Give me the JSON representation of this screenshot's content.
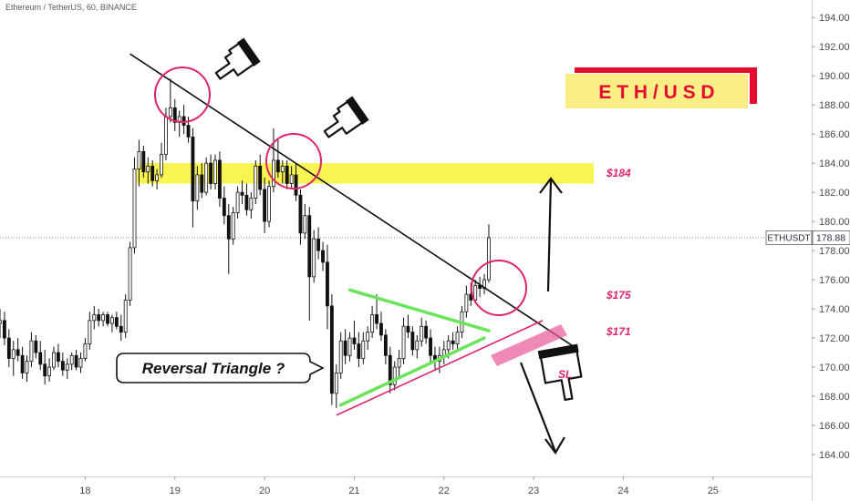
{
  "header": {
    "symbol": "Ethereum / TetherUS, 60, BINANCE"
  },
  "banner": {
    "text": "E T H / U S D"
  },
  "labels": {
    "zone_184": "$184",
    "level_175": "$175",
    "level_171": "$171",
    "callout": "Reversal Triangle ?",
    "stop_loss": "SL"
  },
  "price_tag": {
    "symbol": "ETHUSDT",
    "value": "178.88"
  },
  "chart_data": {
    "type": "candlestick",
    "y_axis": {
      "ticks": [
        "194.00",
        "192.00",
        "190.00",
        "188.00",
        "186.00",
        "184.00",
        "182.00",
        "180.00",
        "178.00",
        "176.00",
        "174.00",
        "172.00",
        "170.00",
        "168.00",
        "166.00",
        "164.00"
      ],
      "range": [
        162.5,
        195.2
      ]
    },
    "x_axis": {
      "ticks": [
        "18",
        "19",
        "20",
        "21",
        "22",
        "23",
        "24",
        "25"
      ],
      "range": [
        17.05,
        26.1
      ]
    },
    "last_price": 178.88,
    "resistance_zone": [
      182.6,
      184.0
    ],
    "levels": [
      175,
      171
    ],
    "trendline_down": [
      [
        18.5,
        191.5
      ],
      [
        23.45,
        171.4
      ]
    ],
    "triangle_upper": [
      [
        20.95,
        175.3
      ],
      [
        22.5,
        172.5
      ]
    ],
    "triangle_lower": [
      [
        20.85,
        167.4
      ],
      [
        22.45,
        172.0
      ]
    ],
    "support_line": [
      [
        20.8,
        166.7
      ],
      [
        23.1,
        173.2
      ]
    ],
    "candles": [
      [
        17.05,
        173.0,
        174.0,
        172.0,
        173.2
      ],
      [
        17.1,
        173.2,
        173.8,
        171.5,
        172.0
      ],
      [
        17.15,
        172.0,
        172.6,
        170.0,
        170.6
      ],
      [
        17.2,
        170.6,
        171.8,
        169.4,
        171.2
      ],
      [
        17.25,
        171.2,
        172.0,
        170.4,
        170.8
      ],
      [
        17.3,
        170.8,
        171.4,
        169.2,
        169.6
      ],
      [
        17.35,
        169.6,
        170.8,
        169.0,
        170.4
      ],
      [
        17.4,
        170.4,
        172.4,
        170.0,
        171.8
      ],
      [
        17.45,
        171.8,
        172.2,
        170.6,
        171.0
      ],
      [
        17.5,
        171.0,
        171.8,
        169.8,
        170.2
      ],
      [
        17.55,
        170.2,
        171.2,
        168.8,
        169.4
      ],
      [
        17.6,
        169.4,
        170.6,
        169.0,
        170.0
      ],
      [
        17.65,
        170.0,
        171.4,
        169.8,
        171.0
      ],
      [
        17.7,
        171.0,
        171.6,
        170.0,
        170.4
      ],
      [
        17.75,
        170.4,
        171.0,
        169.4,
        169.8
      ],
      [
        17.8,
        169.8,
        170.6,
        169.2,
        170.2
      ],
      [
        17.85,
        170.2,
        171.0,
        169.8,
        170.8
      ],
      [
        17.9,
        170.8,
        171.2,
        169.8,
        170.0
      ],
      [
        17.95,
        170.0,
        171.0,
        169.6,
        170.6
      ],
      [
        18.0,
        170.6,
        172.0,
        170.4,
        171.6
      ],
      [
        18.05,
        171.6,
        173.8,
        171.2,
        173.2
      ],
      [
        18.1,
        173.2,
        174.2,
        172.6,
        173.6
      ],
      [
        18.15,
        173.6,
        174.0,
        172.8,
        173.2
      ],
      [
        18.2,
        173.2,
        173.8,
        172.8,
        173.6
      ],
      [
        18.25,
        173.6,
        173.8,
        172.8,
        173.0
      ],
      [
        18.3,
        173.0,
        173.6,
        172.4,
        173.4
      ],
      [
        18.35,
        173.4,
        173.8,
        172.6,
        172.8
      ],
      [
        18.4,
        172.8,
        173.6,
        171.8,
        172.4
      ],
      [
        18.45,
        172.4,
        175.0,
        172.0,
        174.6
      ],
      [
        18.5,
        174.6,
        178.6,
        174.2,
        178.2
      ],
      [
        18.55,
        178.2,
        184.4,
        177.8,
        183.6
      ],
      [
        18.6,
        183.6,
        185.6,
        182.4,
        184.8
      ],
      [
        18.65,
        184.8,
        185.2,
        183.0,
        183.4
      ],
      [
        18.7,
        183.4,
        184.4,
        182.6,
        183.8
      ],
      [
        18.75,
        183.8,
        184.2,
        182.4,
        182.8
      ],
      [
        18.8,
        182.8,
        183.6,
        182.2,
        183.2
      ],
      [
        18.85,
        183.2,
        185.4,
        183.0,
        184.6
      ],
      [
        18.9,
        184.6,
        187.8,
        184.2,
        187.2
      ],
      [
        18.95,
        187.2,
        189.8,
        186.8,
        187.8
      ],
      [
        19.0,
        187.8,
        188.4,
        186.2,
        186.8
      ],
      [
        19.05,
        186.8,
        187.6,
        185.8,
        187.2
      ],
      [
        19.1,
        187.2,
        188.0,
        186.0,
        186.6
      ],
      [
        19.15,
        186.6,
        187.2,
        185.4,
        185.8
      ],
      [
        19.2,
        185.8,
        186.4,
        179.6,
        181.4
      ],
      [
        19.25,
        181.4,
        183.8,
        180.8,
        183.2
      ],
      [
        19.3,
        183.2,
        184.0,
        181.6,
        182.0
      ],
      [
        19.35,
        182.0,
        184.4,
        181.8,
        184.0
      ],
      [
        19.4,
        184.0,
        184.6,
        182.2,
        182.6
      ],
      [
        19.45,
        182.6,
        184.6,
        182.2,
        184.2
      ],
      [
        19.5,
        184.2,
        184.8,
        181.0,
        181.6
      ],
      [
        19.55,
        181.6,
        182.4,
        179.8,
        180.4
      ],
      [
        19.6,
        180.4,
        181.2,
        176.4,
        178.8
      ],
      [
        19.65,
        178.8,
        181.0,
        178.4,
        180.6
      ],
      [
        19.7,
        180.6,
        182.4,
        180.2,
        182.0
      ],
      [
        19.75,
        182.0,
        182.8,
        181.2,
        181.8
      ],
      [
        19.8,
        181.8,
        182.6,
        180.4,
        180.8
      ],
      [
        19.85,
        180.8,
        182.0,
        180.2,
        181.6
      ],
      [
        19.9,
        181.6,
        184.2,
        181.2,
        183.8
      ],
      [
        19.95,
        183.8,
        184.6,
        181.8,
        182.2
      ],
      [
        20.0,
        182.2,
        183.0,
        179.2,
        180.0
      ],
      [
        20.05,
        180.0,
        182.8,
        179.6,
        182.4
      ],
      [
        20.1,
        182.4,
        186.4,
        182.0,
        184.2
      ],
      [
        20.15,
        184.2,
        185.6,
        183.0,
        183.4
      ],
      [
        20.2,
        183.4,
        184.2,
        182.6,
        183.8
      ],
      [
        20.25,
        183.8,
        184.2,
        182.2,
        182.6
      ],
      [
        20.3,
        182.6,
        183.8,
        182.2,
        183.2
      ],
      [
        20.35,
        183.2,
        184.0,
        181.4,
        181.8
      ],
      [
        20.4,
        181.8,
        182.2,
        178.4,
        179.2
      ],
      [
        20.45,
        179.2,
        181.2,
        178.8,
        180.4
      ],
      [
        20.5,
        180.4,
        181.0,
        173.2,
        176.2
      ],
      [
        20.55,
        176.2,
        179.4,
        175.8,
        178.8
      ],
      [
        20.6,
        178.8,
        179.6,
        177.4,
        178.0
      ],
      [
        20.65,
        178.0,
        178.6,
        176.6,
        177.2
      ],
      [
        20.7,
        177.2,
        178.4,
        172.6,
        174.2
      ],
      [
        20.75,
        174.2,
        175.0,
        167.4,
        168.2
      ],
      [
        20.8,
        168.2,
        170.2,
        167.2,
        169.6
      ],
      [
        20.85,
        169.6,
        172.4,
        169.2,
        171.8
      ],
      [
        20.9,
        171.8,
        172.6,
        170.2,
        170.8
      ],
      [
        20.95,
        170.8,
        172.4,
        170.4,
        172.0
      ],
      [
        21.0,
        172.0,
        173.2,
        171.2,
        171.6
      ],
      [
        21.05,
        171.6,
        172.4,
        170.0,
        170.6
      ],
      [
        21.1,
        170.6,
        172.4,
        170.2,
        171.8
      ],
      [
        21.15,
        171.8,
        172.8,
        171.2,
        172.4
      ],
      [
        21.2,
        172.4,
        174.2,
        172.0,
        173.6
      ],
      [
        21.25,
        173.6,
        175.0,
        172.6,
        173.0
      ],
      [
        21.3,
        173.0,
        173.8,
        171.8,
        172.2
      ],
      [
        21.35,
        172.2,
        172.6,
        170.2,
        170.8
      ],
      [
        21.4,
        170.8,
        171.4,
        168.2,
        168.8
      ],
      [
        21.45,
        168.8,
        170.4,
        168.4,
        170.0
      ],
      [
        21.5,
        170.0,
        171.2,
        169.2,
        170.6
      ],
      [
        21.55,
        170.6,
        173.4,
        170.2,
        172.8
      ],
      [
        21.6,
        172.8,
        173.6,
        172.0,
        172.4
      ],
      [
        21.65,
        172.4,
        172.8,
        170.8,
        171.2
      ],
      [
        21.7,
        171.2,
        172.2,
        170.6,
        171.8
      ],
      [
        21.75,
        171.8,
        173.4,
        171.4,
        172.8
      ],
      [
        21.8,
        172.8,
        173.2,
        171.6,
        172.0
      ],
      [
        21.85,
        172.0,
        172.6,
        170.2,
        170.8
      ],
      [
        21.9,
        170.8,
        171.4,
        169.8,
        170.4
      ],
      [
        21.95,
        170.4,
        171.4,
        169.6,
        170.8
      ],
      [
        22.0,
        170.8,
        171.8,
        170.2,
        171.2
      ],
      [
        22.05,
        171.2,
        172.2,
        170.6,
        171.8
      ],
      [
        22.1,
        171.8,
        172.4,
        171.2,
        171.6
      ],
      [
        22.15,
        171.6,
        172.8,
        171.2,
        172.4
      ],
      [
        22.2,
        172.4,
        174.2,
        172.0,
        173.8
      ],
      [
        22.25,
        173.8,
        175.6,
        173.4,
        175.0
      ],
      [
        22.3,
        175.0,
        175.8,
        174.2,
        174.6
      ],
      [
        22.35,
        174.6,
        176.0,
        174.4,
        175.6
      ],
      [
        22.4,
        175.6,
        176.2,
        174.8,
        175.4
      ],
      [
        22.45,
        175.4,
        176.4,
        175.0,
        176.0
      ],
      [
        22.5,
        176.0,
        179.8,
        175.8,
        178.88
      ]
    ]
  }
}
